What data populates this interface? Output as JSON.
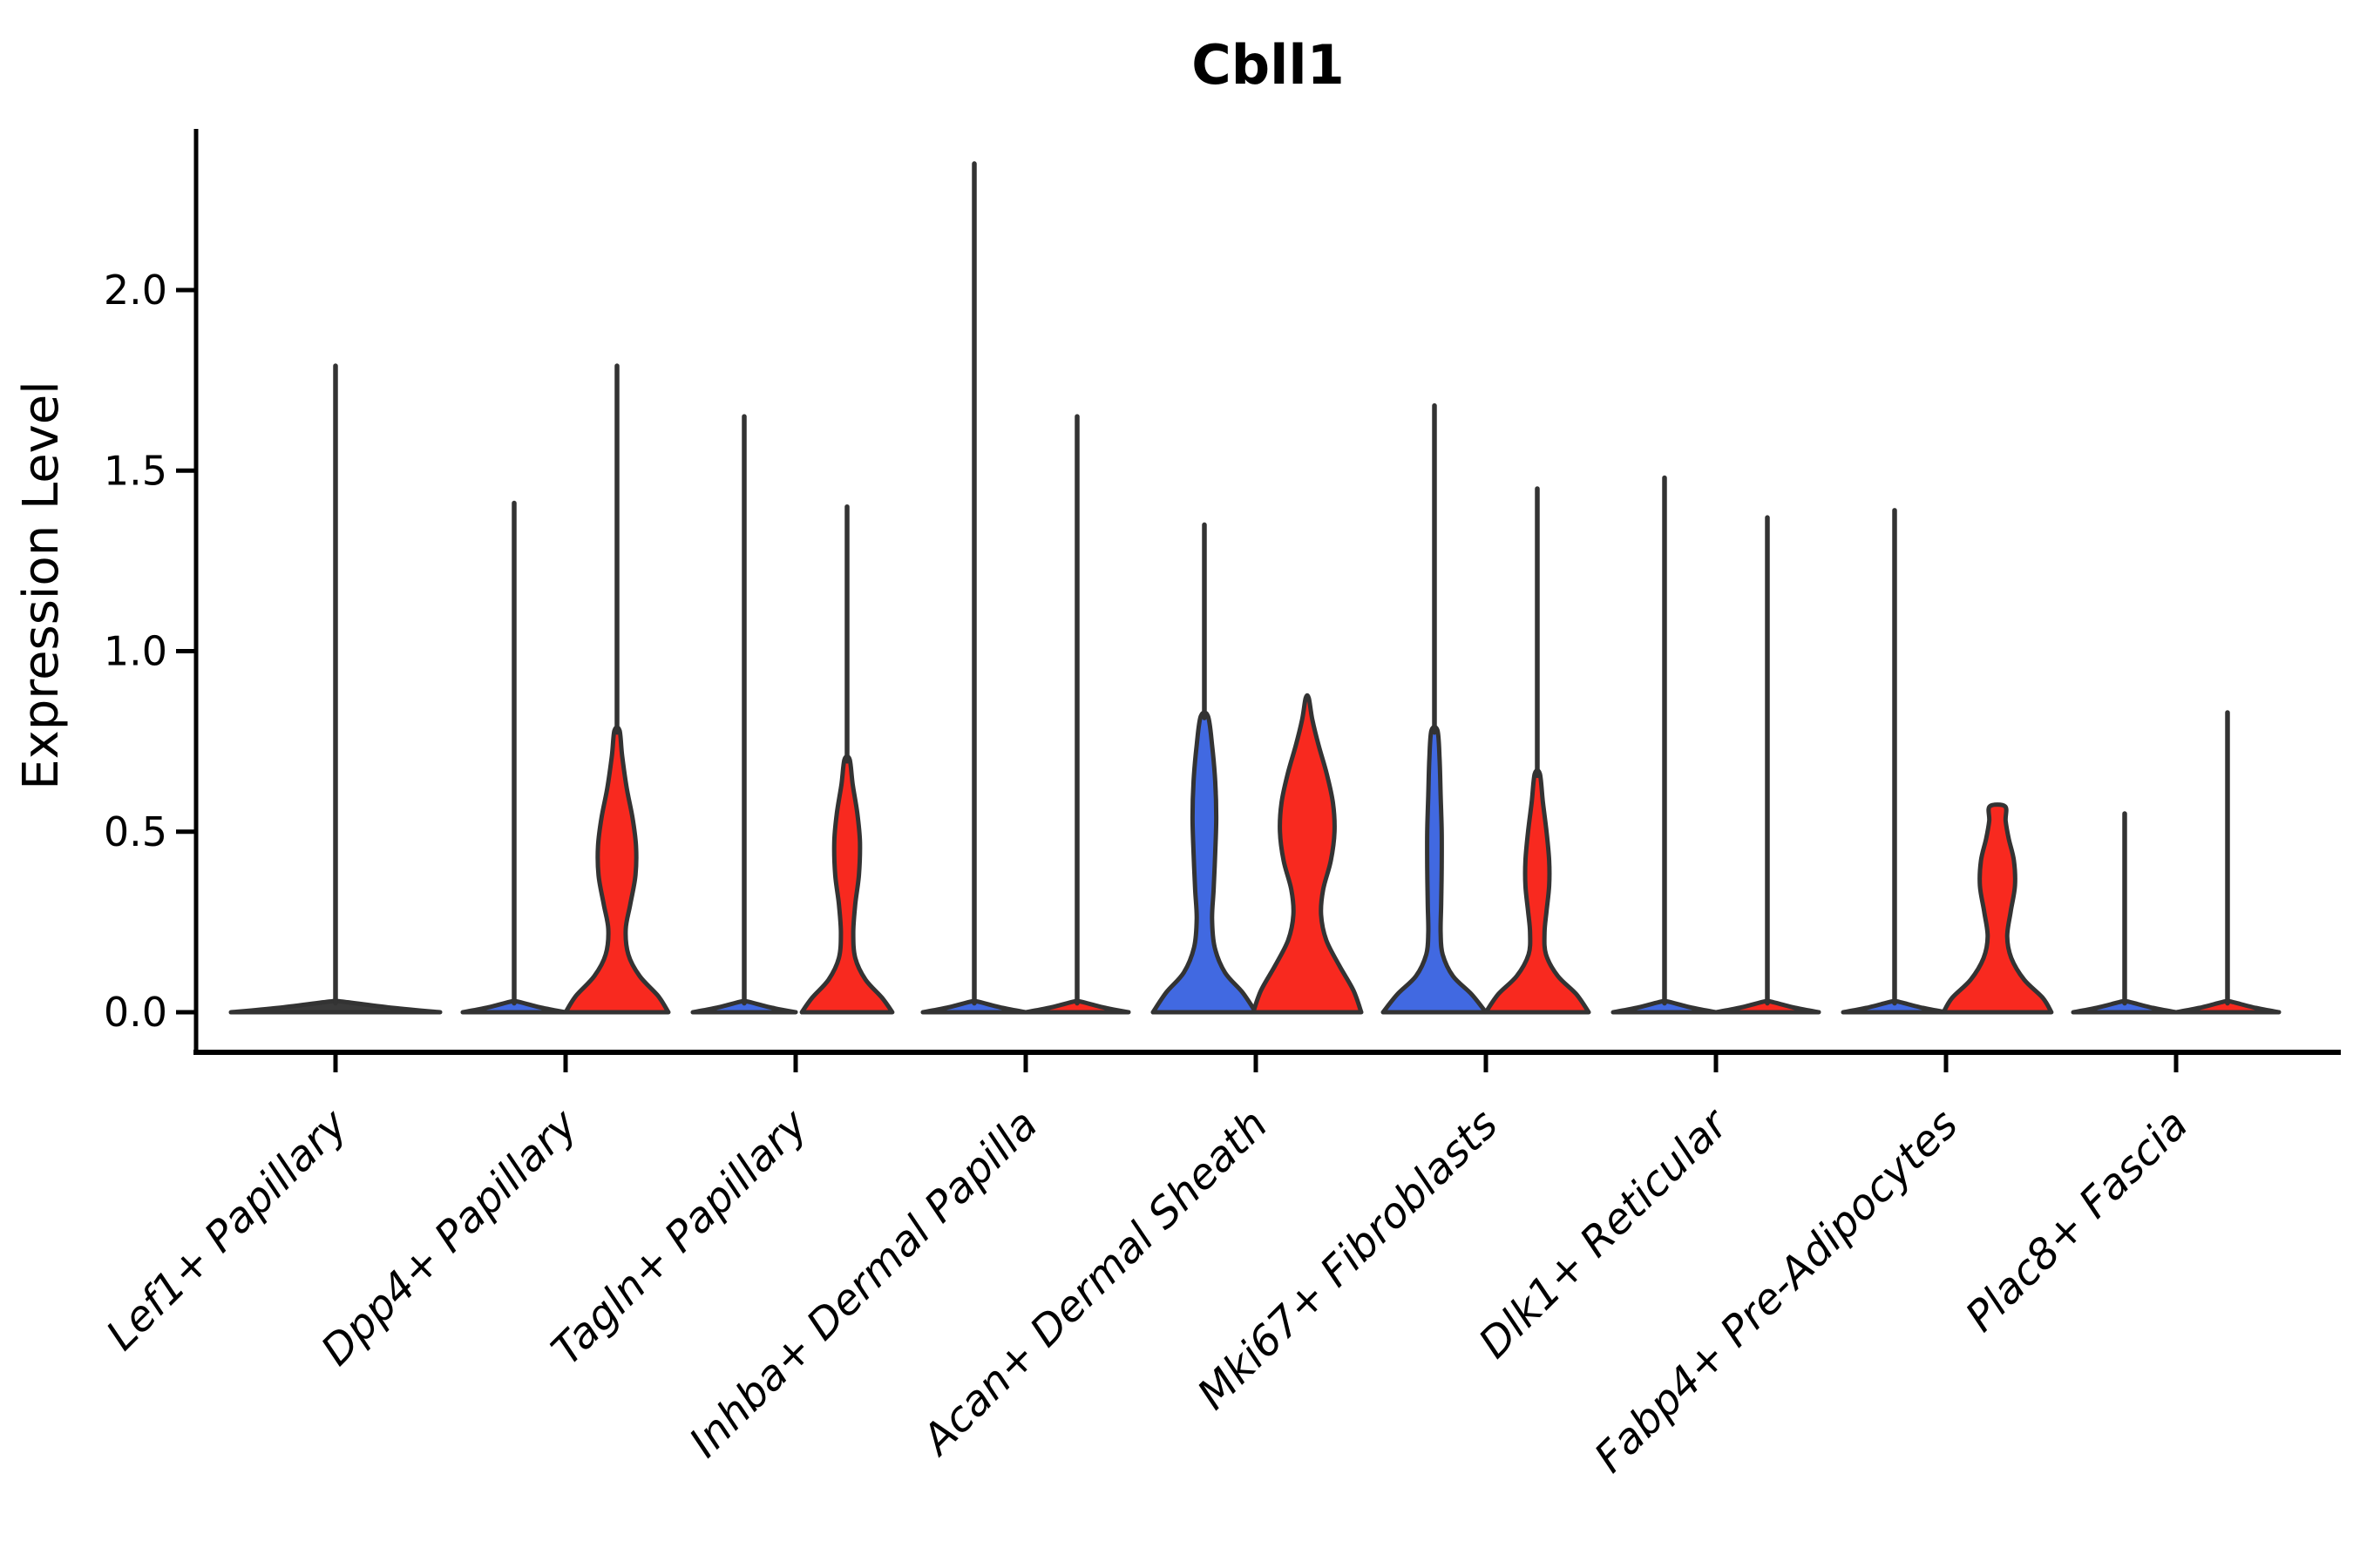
{
  "figure": {
    "background": "#ffffff"
  },
  "chart_data": {
    "type": "violin",
    "title": "Cbll1",
    "ylabel": "Expression Level",
    "xlabel": "",
    "grid": false,
    "legend_position": "none",
    "ylim": [
      -0.11,
      2.45
    ],
    "ytick_labels": [
      "0.0",
      "0.5",
      "1.0",
      "1.5",
      "2.0"
    ],
    "ytick_values": [
      0.0,
      0.5,
      1.0,
      1.5,
      2.0
    ],
    "palette": {
      "blue": "#4169E1",
      "red": "#F8291F",
      "outline": "#333333",
      "axis": "#000000",
      "flat_fill": "#3a3a3a"
    },
    "categories": [
      "Lef1+ Papillary",
      "Dpp4+ Papillary",
      "Tagln+ Papillary",
      "Inhba+ Dermal Papilla",
      "Acan+ Dermal Sheath",
      "Mki67+ Fibroblasts",
      "Dlk1+ Reticular",
      "Fabp4+ Pre-Adipocytes",
      "Plac8+ Fascia"
    ],
    "groups": [
      {
        "category": "Lef1+ Papillary",
        "violins": [
          {
            "side": "full",
            "fill": "flat_fill",
            "max": 1.79,
            "flat": true
          }
        ]
      },
      {
        "category": "Dpp4+ Papillary",
        "violins": [
          {
            "side": "left",
            "fill": "blue",
            "max": 1.41,
            "flat": true
          },
          {
            "side": "right",
            "fill": "red",
            "max": 1.79,
            "flat": false,
            "profile": [
              [
                0,
                1.0
              ],
              [
                0.045,
                0.8
              ],
              [
                0.1,
                0.44
              ],
              [
                0.16,
                0.22
              ],
              [
                0.23,
                0.17
              ],
              [
                0.3,
                0.26
              ],
              [
                0.38,
                0.36
              ],
              [
                0.46,
                0.37
              ],
              [
                0.54,
                0.3
              ],
              [
                0.62,
                0.19
              ],
              [
                0.71,
                0.1
              ],
              [
                0.78,
                0.05
              ]
            ]
          }
        ]
      },
      {
        "category": "Tagln+ Papillary",
        "violins": [
          {
            "side": "left",
            "fill": "blue",
            "max": 1.65,
            "flat": true
          },
          {
            "side": "right",
            "fill": "red",
            "max": 1.4,
            "flat": false,
            "profile": [
              [
                0,
                0.88
              ],
              [
                0.04,
                0.68
              ],
              [
                0.09,
                0.36
              ],
              [
                0.15,
                0.16
              ],
              [
                0.22,
                0.12
              ],
              [
                0.3,
                0.16
              ],
              [
                0.38,
                0.23
              ],
              [
                0.47,
                0.25
              ],
              [
                0.55,
                0.2
              ],
              [
                0.63,
                0.11
              ],
              [
                0.7,
                0.05
              ]
            ]
          }
        ]
      },
      {
        "category": "Inhba+ Dermal Papilla",
        "violins": [
          {
            "side": "left",
            "fill": "blue",
            "max": 2.35,
            "flat": true
          },
          {
            "side": "right",
            "fill": "red",
            "max": 1.65,
            "flat": true
          }
        ]
      },
      {
        "category": "Acan+ Dermal Sheath",
        "violins": [
          {
            "side": "left",
            "fill": "blue",
            "max": 1.35,
            "flat": false,
            "profile": [
              [
                0,
                1.0
              ],
              [
                0.055,
                0.74
              ],
              [
                0.11,
                0.4
              ],
              [
                0.18,
                0.2
              ],
              [
                0.26,
                0.15
              ],
              [
                0.34,
                0.18
              ],
              [
                0.44,
                0.21
              ],
              [
                0.54,
                0.23
              ],
              [
                0.64,
                0.21
              ],
              [
                0.74,
                0.15
              ],
              [
                0.82,
                0.07
              ]
            ]
          },
          {
            "side": "right",
            "fill": "red",
            "max": 0.87,
            "flat": false,
            "profile": [
              [
                0,
                1.05
              ],
              [
                0.06,
                0.9
              ],
              [
                0.13,
                0.62
              ],
              [
                0.2,
                0.37
              ],
              [
                0.27,
                0.27
              ],
              [
                0.34,
                0.31
              ],
              [
                0.42,
                0.46
              ],
              [
                0.5,
                0.53
              ],
              [
                0.58,
                0.5
              ],
              [
                0.66,
                0.38
              ],
              [
                0.74,
                0.22
              ],
              [
                0.81,
                0.1
              ],
              [
                0.87,
                0.03
              ]
            ]
          }
        ]
      },
      {
        "category": "Mki67+ Fibroblasts",
        "violins": [
          {
            "side": "left",
            "fill": "blue",
            "max": 1.68,
            "flat": false,
            "profile": [
              [
                0,
                1.0
              ],
              [
                0.05,
                0.72
              ],
              [
                0.1,
                0.36
              ],
              [
                0.16,
                0.16
              ],
              [
                0.22,
                0.12
              ],
              [
                0.3,
                0.13
              ],
              [
                0.4,
                0.14
              ],
              [
                0.5,
                0.14
              ],
              [
                0.6,
                0.12
              ],
              [
                0.7,
                0.1
              ],
              [
                0.78,
                0.06
              ]
            ]
          },
          {
            "side": "right",
            "fill": "red",
            "max": 1.45,
            "flat": false,
            "profile": [
              [
                0,
                1.0
              ],
              [
                0.05,
                0.76
              ],
              [
                0.1,
                0.4
              ],
              [
                0.16,
                0.17
              ],
              [
                0.22,
                0.14
              ],
              [
                0.28,
                0.18
              ],
              [
                0.35,
                0.23
              ],
              [
                0.42,
                0.23
              ],
              [
                0.5,
                0.18
              ],
              [
                0.58,
                0.11
              ],
              [
                0.66,
                0.05
              ]
            ]
          }
        ]
      },
      {
        "category": "Dlk1+ Reticular",
        "violins": [
          {
            "side": "left",
            "fill": "blue",
            "max": 1.48,
            "flat": true
          },
          {
            "side": "right",
            "fill": "red",
            "max": 1.37,
            "flat": true
          }
        ]
      },
      {
        "category": "Fabp4+ Pre-Adipocytes",
        "violins": [
          {
            "side": "left",
            "fill": "blue",
            "max": 1.39,
            "flat": true
          },
          {
            "side": "right",
            "fill": "red",
            "max": 0.57,
            "flat": false,
            "profile": [
              [
                0,
                1.05
              ],
              [
                0.04,
                0.88
              ],
              [
                0.09,
                0.52
              ],
              [
                0.15,
                0.27
              ],
              [
                0.21,
                0.19
              ],
              [
                0.28,
                0.26
              ],
              [
                0.35,
                0.34
              ],
              [
                0.42,
                0.32
              ],
              [
                0.48,
                0.22
              ],
              [
                0.53,
                0.16
              ],
              [
                0.57,
                0.15
              ]
            ]
          }
        ]
      },
      {
        "category": "Plac8+ Fascia",
        "violins": [
          {
            "side": "left",
            "fill": "blue",
            "max": 0.55,
            "flat": true
          },
          {
            "side": "right",
            "fill": "red",
            "max": 0.83,
            "flat": true
          }
        ]
      }
    ]
  }
}
